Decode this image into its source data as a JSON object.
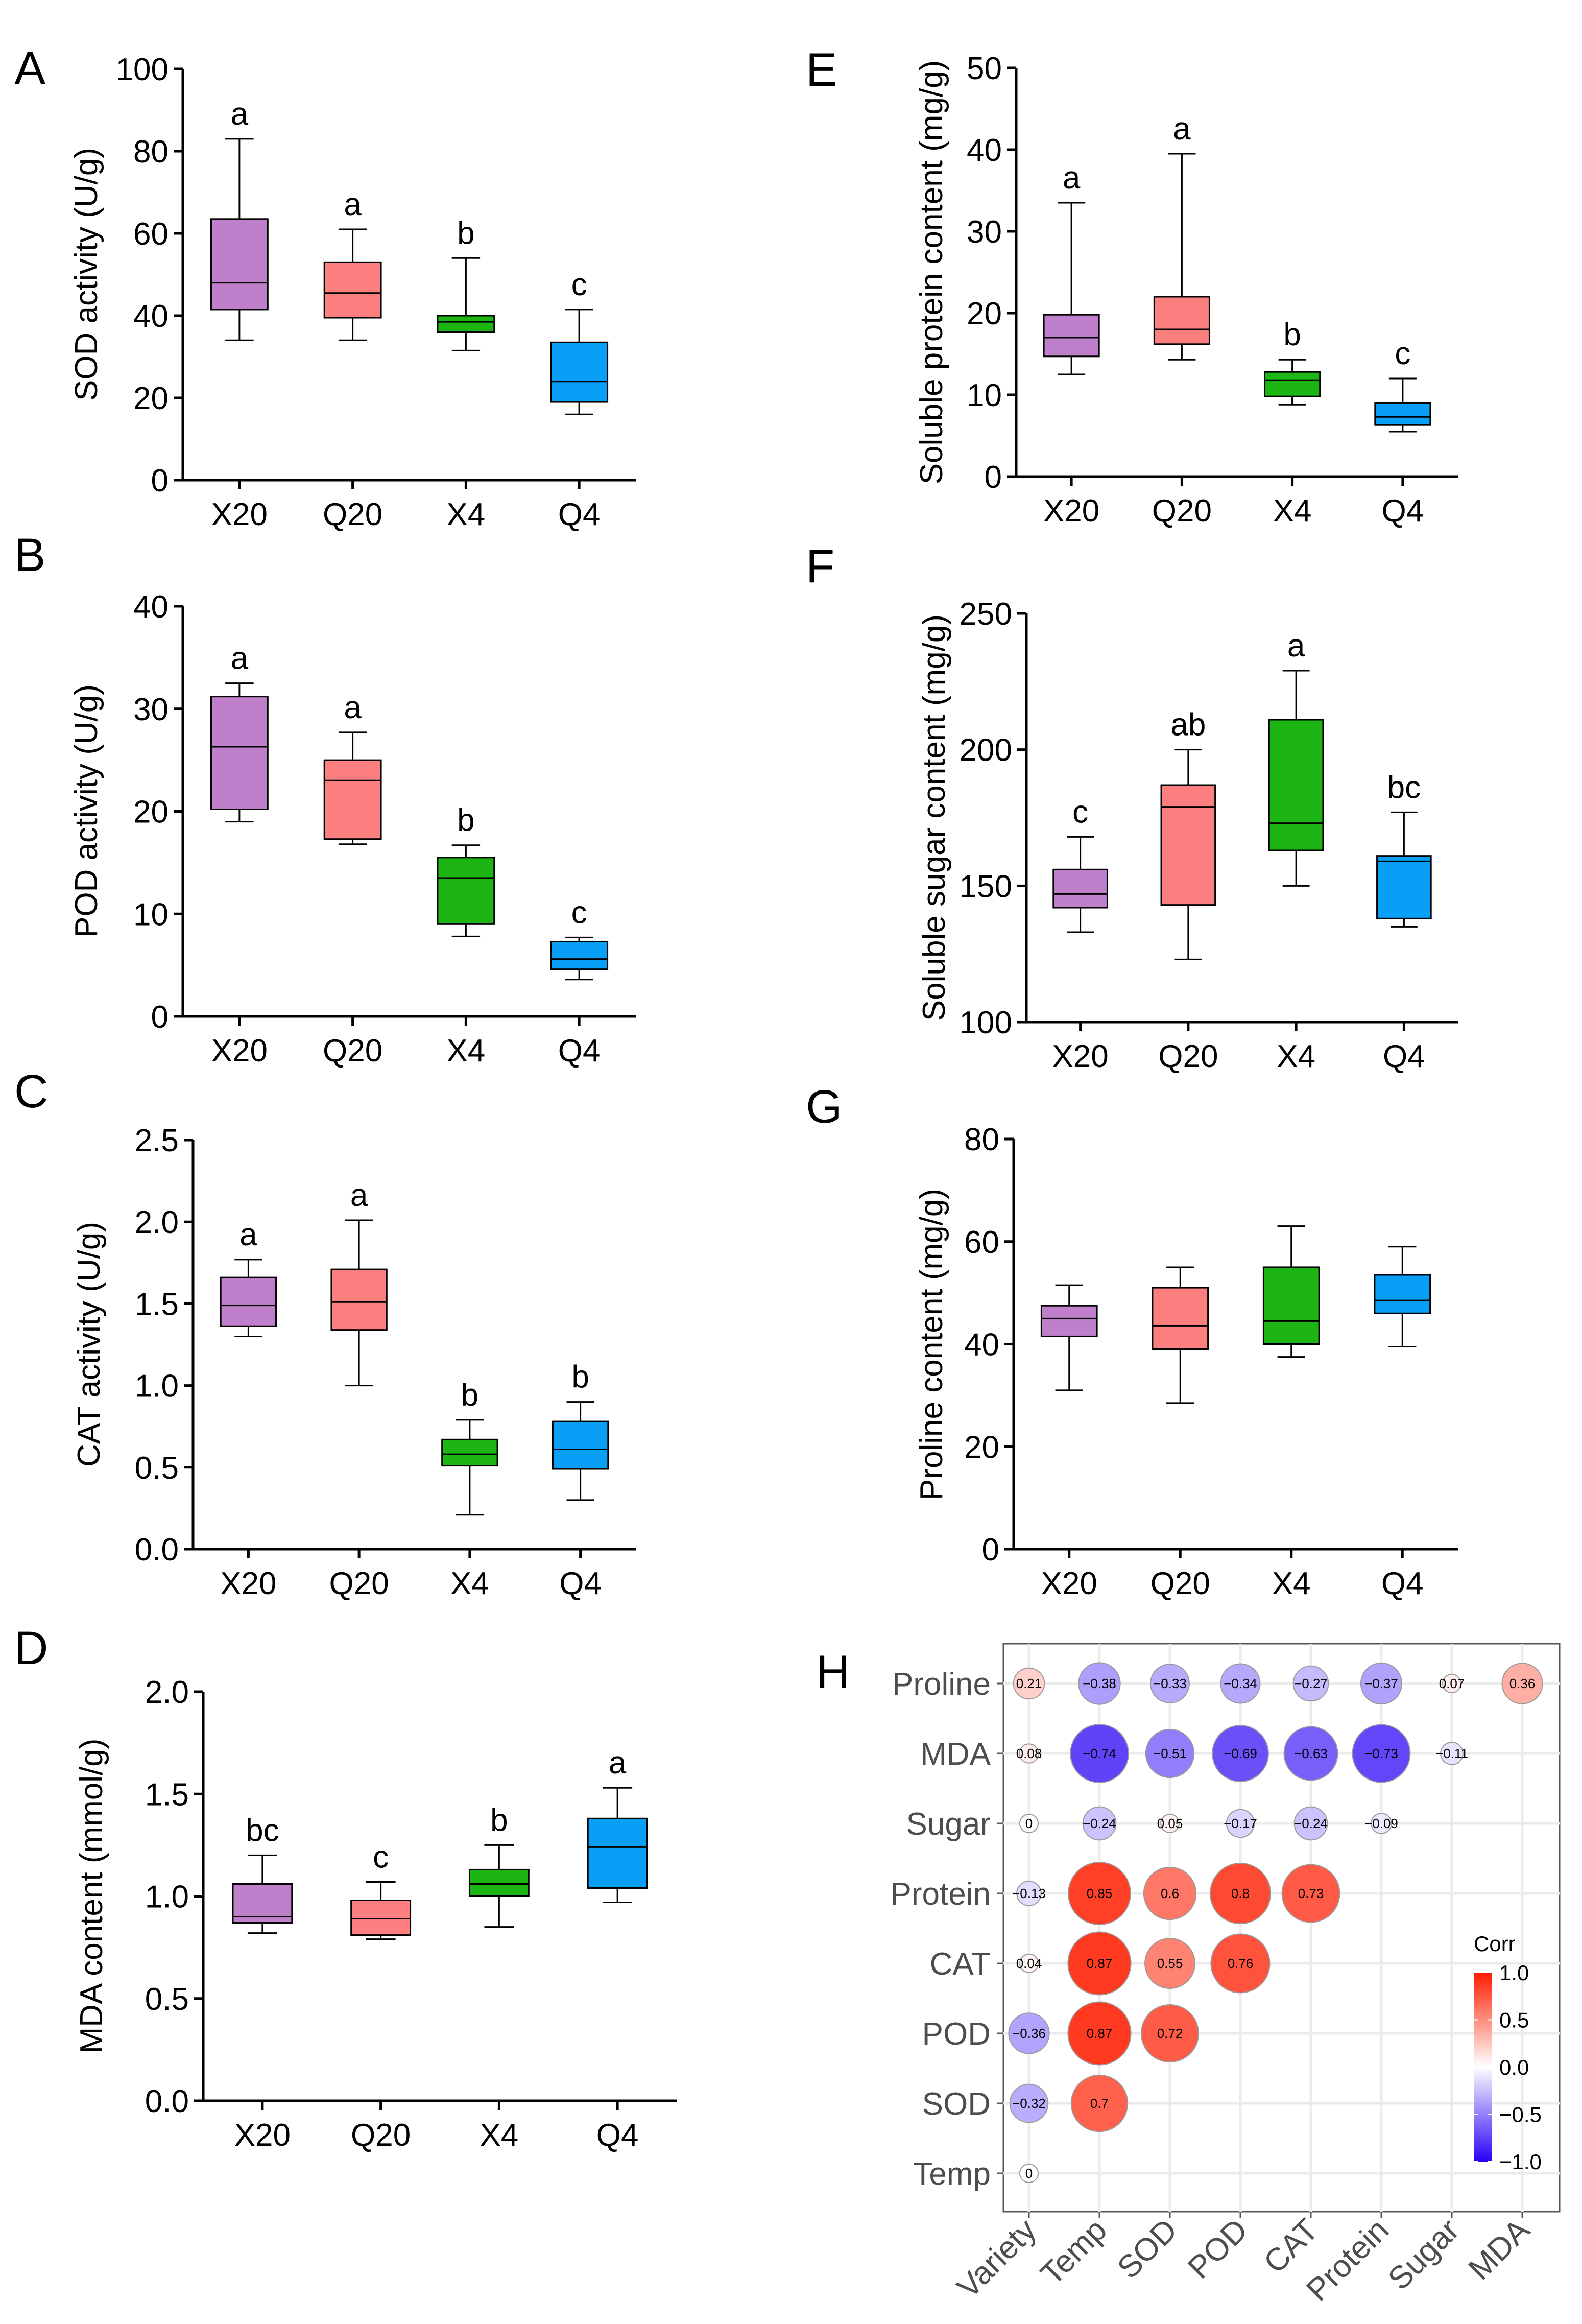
{
  "colors": {
    "X20": "#c07fcb",
    "Q20": "#fb7f7f",
    "X4": "#1cb513",
    "Q4": "#0a9ff6",
    "corr_neg": "#2b00f7",
    "corr_mid": "#ffffff",
    "corr_pos": "#ff1d00"
  },
  "boxplots": [
    {
      "id": "A",
      "letter": "A",
      "ylabel": "SOD activity (U/g)",
      "ylim": [
        0,
        100
      ],
      "yticks": [
        0,
        20,
        40,
        60,
        80,
        100
      ],
      "tick_labels": [
        "0",
        "20",
        "40",
        "60",
        "80",
        "100"
      ],
      "categories": [
        "X20",
        "Q20",
        "X4",
        "Q4"
      ],
      "boxes": [
        {
          "group": "X20",
          "min": 34,
          "q1": 41.5,
          "median": 48,
          "q3": 63.5,
          "max": 83,
          "sig": "a"
        },
        {
          "group": "Q20",
          "min": 34,
          "q1": 39.5,
          "median": 45.5,
          "q3": 53,
          "max": 61,
          "sig": "a"
        },
        {
          "group": "X4",
          "min": 31.5,
          "q1": 36,
          "median": 38.5,
          "q3": 40,
          "max": 54,
          "sig": "b"
        },
        {
          "group": "Q4",
          "min": 16,
          "q1": 19,
          "median": 24,
          "q3": 33.5,
          "max": 41.5,
          "sig": "c"
        }
      ]
    },
    {
      "id": "B",
      "letter": "B",
      "ylabel": "POD activity (U/g)",
      "ylim": [
        0,
        40
      ],
      "yticks": [
        0,
        10,
        20,
        30,
        40
      ],
      "tick_labels": [
        "0",
        "10",
        "20",
        "30",
        "40"
      ],
      "categories": [
        "X20",
        "Q20",
        "X4",
        "Q4"
      ],
      "boxes": [
        {
          "group": "X20",
          "min": 19,
          "q1": 20.2,
          "median": 26.3,
          "q3": 31.2,
          "max": 32.5,
          "sig": "a"
        },
        {
          "group": "Q20",
          "min": 16.8,
          "q1": 17.3,
          "median": 23,
          "q3": 25,
          "max": 27.7,
          "sig": "a"
        },
        {
          "group": "X4",
          "min": 7.8,
          "q1": 9,
          "median": 13.5,
          "q3": 15.5,
          "max": 16.7,
          "sig": "b"
        },
        {
          "group": "Q4",
          "min": 3.6,
          "q1": 4.6,
          "median": 5.6,
          "q3": 7.3,
          "max": 7.7,
          "sig": "c"
        }
      ]
    },
    {
      "id": "C",
      "letter": "C",
      "ylabel": "CAT activity (U/g)",
      "ylim": [
        0,
        2.5
      ],
      "yticks": [
        0,
        0.5,
        1.0,
        1.5,
        2.0,
        2.5
      ],
      "tick_labels": [
        "0.0",
        "0.5",
        "1.0",
        "1.5",
        "2.0",
        "2.5"
      ],
      "categories": [
        "X20",
        "Q20",
        "X4",
        "Q4"
      ],
      "boxes": [
        {
          "group": "X20",
          "min": 1.3,
          "q1": 1.36,
          "median": 1.49,
          "q3": 1.66,
          "max": 1.77,
          "sig": "a"
        },
        {
          "group": "Q20",
          "min": 1.0,
          "q1": 1.34,
          "median": 1.51,
          "q3": 1.71,
          "max": 2.01,
          "sig": "a"
        },
        {
          "group": "X4",
          "min": 0.21,
          "q1": 0.51,
          "median": 0.58,
          "q3": 0.67,
          "max": 0.79,
          "sig": "b"
        },
        {
          "group": "Q4",
          "min": 0.3,
          "q1": 0.49,
          "median": 0.61,
          "q3": 0.78,
          "max": 0.9,
          "sig": "b"
        }
      ]
    },
    {
      "id": "D",
      "letter": "D",
      "ylabel": "MDA content (mmol/g)",
      "ylim": [
        0,
        2.0
      ],
      "yticks": [
        0,
        0.5,
        1.0,
        1.5,
        2.0
      ],
      "tick_labels": [
        "0.0",
        "0.5",
        "1.0",
        "1.5",
        "2.0"
      ],
      "categories": [
        "X20",
        "Q20",
        "X4",
        "Q4"
      ],
      "boxes": [
        {
          "group": "X20",
          "min": 0.82,
          "q1": 0.87,
          "median": 0.9,
          "q3": 1.06,
          "max": 1.2,
          "sig": "bc"
        },
        {
          "group": "Q20",
          "min": 0.79,
          "q1": 0.81,
          "median": 0.89,
          "q3": 0.98,
          "max": 1.07,
          "sig": "c"
        },
        {
          "group": "X4",
          "min": 0.85,
          "q1": 1.0,
          "median": 1.06,
          "q3": 1.13,
          "max": 1.25,
          "sig": "b"
        },
        {
          "group": "Q4",
          "min": 0.97,
          "q1": 1.04,
          "median": 1.24,
          "q3": 1.38,
          "max": 1.53,
          "sig": "a"
        }
      ]
    },
    {
      "id": "E",
      "letter": "E",
      "ylabel": "Soluble protein content (mg/g)",
      "ylim": [
        0,
        50
      ],
      "yticks": [
        0,
        10,
        20,
        30,
        40,
        50
      ],
      "tick_labels": [
        "0",
        "10",
        "20",
        "30",
        "40",
        "50"
      ],
      "categories": [
        "X20",
        "Q20",
        "X4",
        "Q4"
      ],
      "boxes": [
        {
          "group": "X20",
          "min": 12.5,
          "q1": 14.7,
          "median": 17,
          "q3": 19.8,
          "max": 33.5,
          "sig": "a"
        },
        {
          "group": "Q20",
          "min": 14.3,
          "q1": 16.2,
          "median": 18,
          "q3": 22,
          "max": 39.5,
          "sig": "a"
        },
        {
          "group": "X4",
          "min": 8.8,
          "q1": 9.8,
          "median": 11.8,
          "q3": 12.8,
          "max": 14.3,
          "sig": "b"
        },
        {
          "group": "Q4",
          "min": 5.5,
          "q1": 6.3,
          "median": 7.3,
          "q3": 9.0,
          "max": 12,
          "sig": "c"
        }
      ]
    },
    {
      "id": "F",
      "letter": "F",
      "ylabel": "Soluble sugar content (mg/g)",
      "ylim": [
        100,
        250
      ],
      "yticks": [
        100,
        150,
        200,
        250
      ],
      "tick_labels": [
        "100",
        "150",
        "200",
        "250"
      ],
      "categories": [
        "X20",
        "Q20",
        "X4",
        "Q4"
      ],
      "boxes": [
        {
          "group": "X20",
          "min": 133,
          "q1": 142,
          "median": 147,
          "q3": 156,
          "max": 168,
          "sig": "c"
        },
        {
          "group": "Q20",
          "min": 123,
          "q1": 143,
          "median": 179,
          "q3": 187,
          "max": 200,
          "sig": "ab"
        },
        {
          "group": "X4",
          "min": 150,
          "q1": 163,
          "median": 173,
          "q3": 211,
          "max": 229,
          "sig": "a"
        },
        {
          "group": "Q4",
          "min": 135,
          "q1": 138,
          "median": 159,
          "q3": 161,
          "max": 177,
          "sig": "bc"
        }
      ]
    },
    {
      "id": "G",
      "letter": "G",
      "ylabel": "Proline content (mg/g)",
      "ylim": [
        0,
        80
      ],
      "yticks": [
        0,
        20,
        40,
        60,
        80
      ],
      "tick_labels": [
        "0",
        "20",
        "40",
        "60",
        "80"
      ],
      "categories": [
        "X20",
        "Q20",
        "X4",
        "Q4"
      ],
      "boxes": [
        {
          "group": "X20",
          "min": 31,
          "q1": 41.5,
          "median": 45,
          "q3": 47.5,
          "max": 51.5,
          "sig": ""
        },
        {
          "group": "Q20",
          "min": 28.5,
          "q1": 39,
          "median": 43.5,
          "q3": 51,
          "max": 55,
          "sig": ""
        },
        {
          "group": "X4",
          "min": 37.5,
          "q1": 40,
          "median": 44.5,
          "q3": 55,
          "max": 63,
          "sig": ""
        },
        {
          "group": "Q4",
          "min": 39.5,
          "q1": 46,
          "median": 48.5,
          "q3": 53.5,
          "max": 59,
          "sig": ""
        }
      ]
    }
  ],
  "correlation": {
    "letter": "H",
    "x_labels": [
      "Variety",
      "Temp",
      "SOD",
      "POD",
      "CAT",
      "Protein",
      "Sugar",
      "MDA"
    ],
    "y_labels": [
      "Proline",
      "MDA",
      "Sugar",
      "Protein",
      "CAT",
      "POD",
      "SOD",
      "Temp"
    ],
    "cells": [
      {
        "row": 0,
        "col": 0,
        "value": 0.21,
        "label": "0.21"
      },
      {
        "row": 0,
        "col": 1,
        "value": -0.38,
        "label": "−0.38"
      },
      {
        "row": 0,
        "col": 2,
        "value": -0.33,
        "label": "−0.33"
      },
      {
        "row": 0,
        "col": 3,
        "value": -0.34,
        "label": "−0.34"
      },
      {
        "row": 0,
        "col": 4,
        "value": -0.27,
        "label": "−0.27"
      },
      {
        "row": 0,
        "col": 5,
        "value": -0.37,
        "label": "−0.37"
      },
      {
        "row": 0,
        "col": 6,
        "value": 0.07,
        "label": "0.07"
      },
      {
        "row": 0,
        "col": 7,
        "value": 0.36,
        "label": "0.36"
      },
      {
        "row": 1,
        "col": 0,
        "value": 0.08,
        "label": "0.08"
      },
      {
        "row": 1,
        "col": 1,
        "value": -0.74,
        "label": "−0.74"
      },
      {
        "row": 1,
        "col": 2,
        "value": -0.51,
        "label": "−0.51"
      },
      {
        "row": 1,
        "col": 3,
        "value": -0.69,
        "label": "−0.69"
      },
      {
        "row": 1,
        "col": 4,
        "value": -0.63,
        "label": "−0.63"
      },
      {
        "row": 1,
        "col": 5,
        "value": -0.73,
        "label": "−0.73"
      },
      {
        "row": 1,
        "col": 6,
        "value": -0.11,
        "label": "−0.11"
      },
      {
        "row": 2,
        "col": 0,
        "value": 0,
        "label": "0"
      },
      {
        "row": 2,
        "col": 1,
        "value": -0.24,
        "label": "−0.24"
      },
      {
        "row": 2,
        "col": 2,
        "value": 0.05,
        "label": "0.05"
      },
      {
        "row": 2,
        "col": 3,
        "value": -0.17,
        "label": "−0.17"
      },
      {
        "row": 2,
        "col": 4,
        "value": -0.24,
        "label": "−0.24"
      },
      {
        "row": 2,
        "col": 5,
        "value": -0.09,
        "label": "−0.09"
      },
      {
        "row": 3,
        "col": 0,
        "value": -0.13,
        "label": "−0.13"
      },
      {
        "row": 3,
        "col": 1,
        "value": 0.85,
        "label": "0.85"
      },
      {
        "row": 3,
        "col": 2,
        "value": 0.6,
        "label": "0.6"
      },
      {
        "row": 3,
        "col": 3,
        "value": 0.8,
        "label": "0.8"
      },
      {
        "row": 3,
        "col": 4,
        "value": 0.73,
        "label": "0.73"
      },
      {
        "row": 4,
        "col": 0,
        "value": 0.04,
        "label": "0.04"
      },
      {
        "row": 4,
        "col": 1,
        "value": 0.87,
        "label": "0.87"
      },
      {
        "row": 4,
        "col": 2,
        "value": 0.55,
        "label": "0.55"
      },
      {
        "row": 4,
        "col": 3,
        "value": 0.76,
        "label": "0.76"
      },
      {
        "row": 5,
        "col": 0,
        "value": -0.36,
        "label": "−0.36"
      },
      {
        "row": 5,
        "col": 1,
        "value": 0.87,
        "label": "0.87"
      },
      {
        "row": 5,
        "col": 2,
        "value": 0.72,
        "label": "0.72"
      },
      {
        "row": 6,
        "col": 0,
        "value": -0.32,
        "label": "−0.32"
      },
      {
        "row": 6,
        "col": 1,
        "value": 0.7,
        "label": "0.7"
      },
      {
        "row": 7,
        "col": 0,
        "value": 0,
        "label": "0"
      }
    ],
    "legend": {
      "title": "Corr",
      "range": [
        -1.0,
        1.0
      ],
      "ticks": [
        1.0,
        0.5,
        0.0,
        -0.5,
        -1.0
      ],
      "tick_labels": [
        "1.0",
        "0.5",
        "0.0",
        "−0.5",
        "−1.0"
      ]
    }
  }
}
